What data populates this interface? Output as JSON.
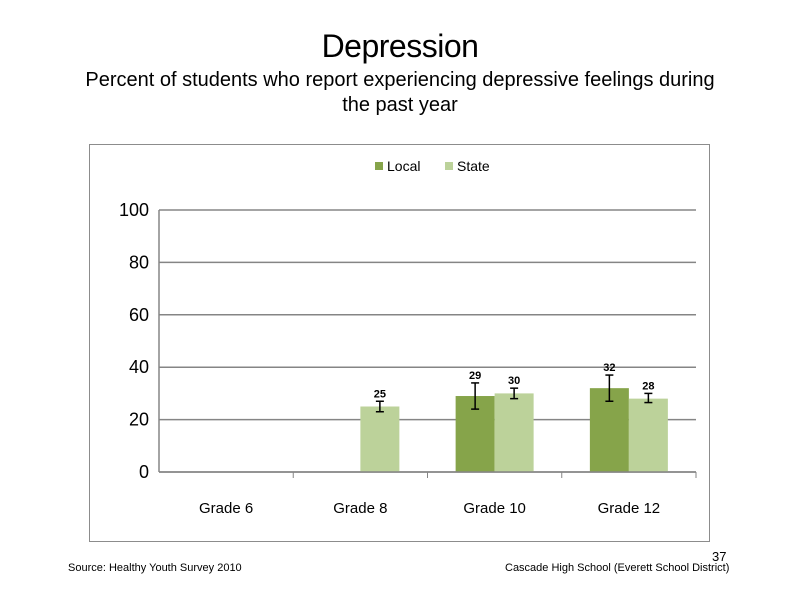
{
  "slide": {
    "title": "Depression",
    "subtitle": "Percent of students who report experiencing  depressive feelings during  the past year",
    "source": "Source: Healthy Youth Survey 2010",
    "school": "Cascade High  School  (Everett School District)",
    "page_number": "37"
  },
  "chart_data": {
    "type": "bar",
    "categories": [
      "Grade 6",
      "Grade 8",
      "Grade 10",
      "Grade 12"
    ],
    "series": [
      {
        "name": "Local",
        "color": "#86a44a",
        "values": [
          null,
          null,
          29,
          32
        ],
        "labels": [
          "",
          "",
          "29",
          "32"
        ],
        "error": [
          null,
          null,
          [
            24,
            34
          ],
          [
            27,
            37
          ]
        ]
      },
      {
        "name": "State",
        "color": "#bcd29a",
        "values": [
          null,
          25,
          30,
          28
        ],
        "labels": [
          "",
          "25",
          "30",
          "28"
        ],
        "error": [
          null,
          [
            23,
            27
          ],
          [
            28,
            32
          ],
          [
            26.5,
            30
          ]
        ]
      }
    ],
    "ylim": [
      0,
      100
    ],
    "yticks": [
      "0",
      "20",
      "40",
      "60",
      "80",
      "100"
    ],
    "grid": true,
    "legend_position": "top"
  }
}
